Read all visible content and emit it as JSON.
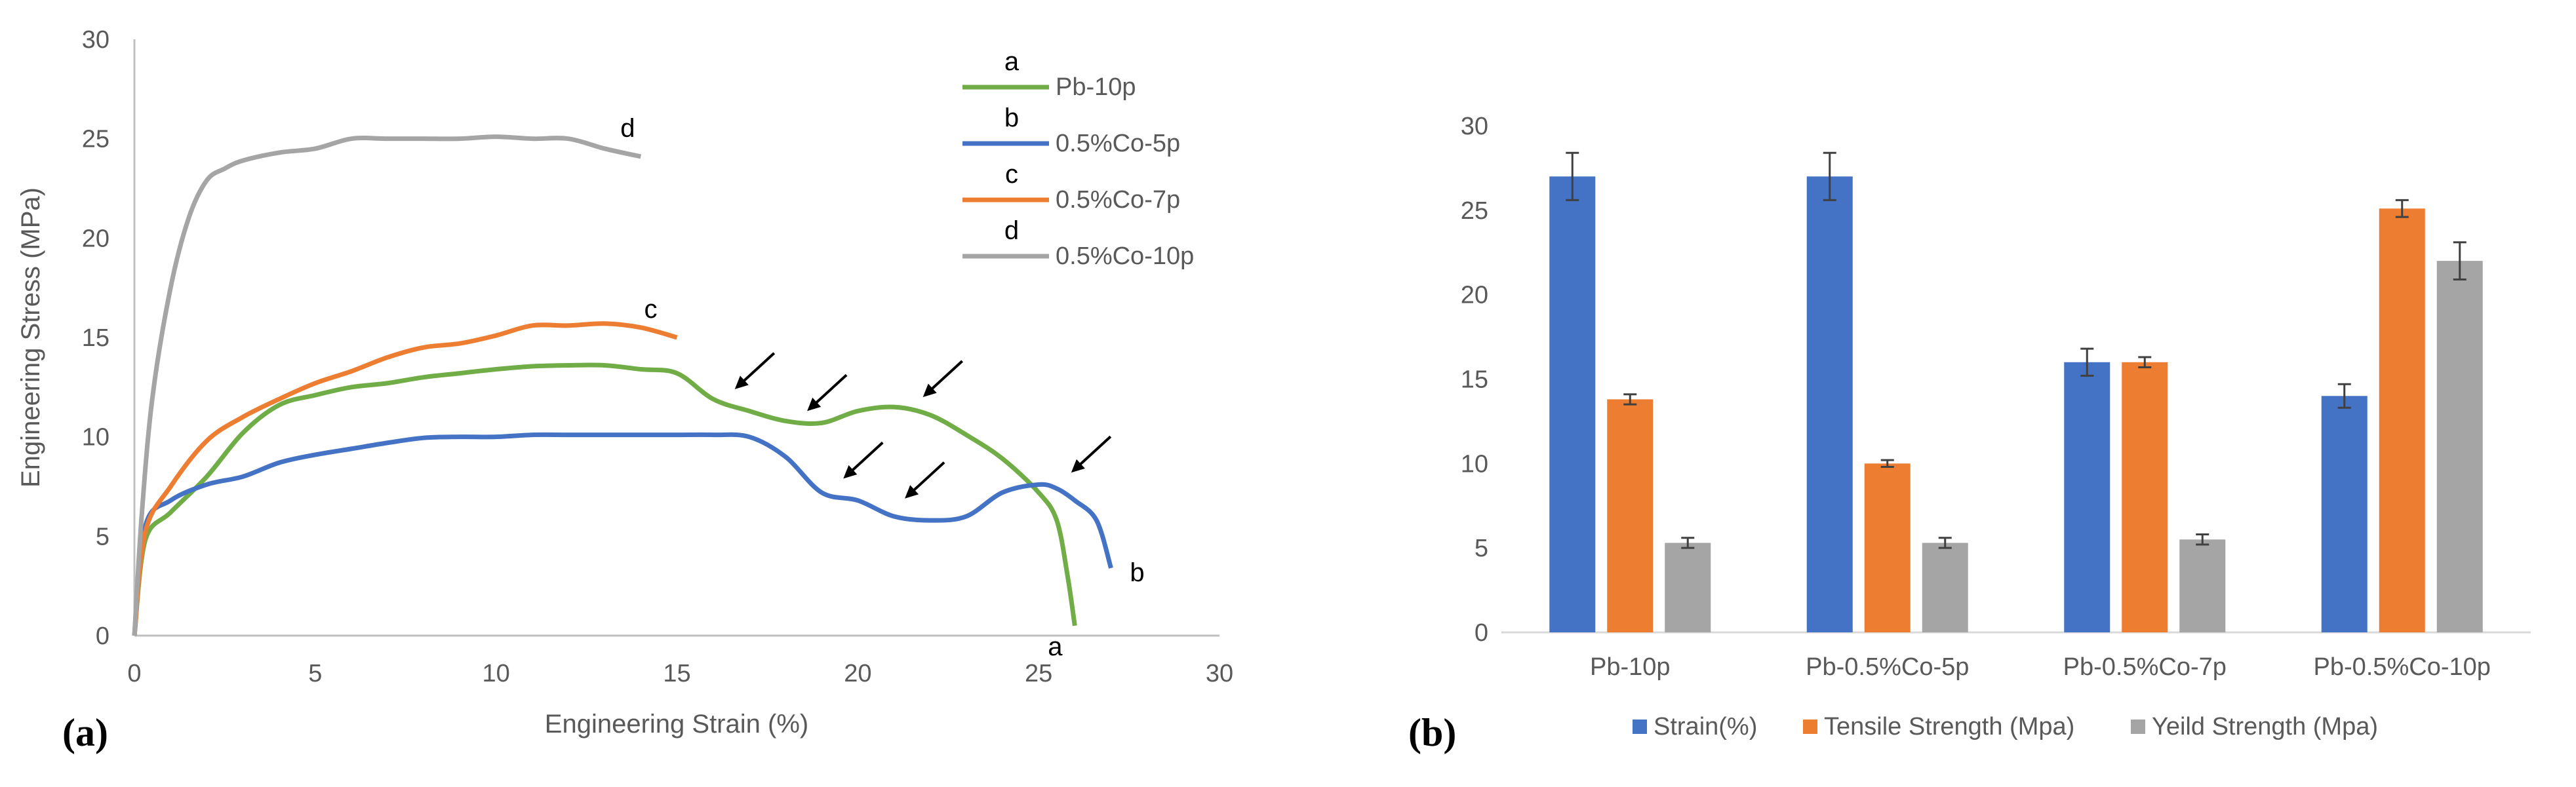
{
  "chart_data": [
    {
      "type": "line",
      "panel_label": "(a)",
      "xlabel": "Engineering Strain (%)",
      "ylabel": "Engineering Stress (MPa)",
      "xlim": [
        0,
        30
      ],
      "ylim": [
        0,
        30
      ],
      "xticks": [
        "0",
        "5",
        "10",
        "15",
        "20",
        "25",
        "30"
      ],
      "yticks": [
        "0",
        "5",
        "10",
        "15",
        "20",
        "25",
        "30"
      ],
      "legend_position": "top-right",
      "series": [
        {
          "name": "Pb-10p",
          "letter": "a",
          "color": "#70AD47",
          "x": [
            0,
            0.3,
            1,
            2,
            3,
            4,
            5,
            6,
            7,
            8,
            9,
            10,
            11,
            12,
            13,
            14,
            15,
            16,
            17,
            18,
            19,
            20,
            21,
            22,
            23,
            24,
            25,
            25.5,
            25.8,
            26
          ],
          "y": [
            0,
            4.8,
            6.2,
            8.0,
            10.2,
            11.6,
            12.1,
            12.5,
            12.7,
            13.0,
            13.2,
            13.4,
            13.55,
            13.6,
            13.6,
            13.4,
            13.2,
            11.9,
            11.3,
            10.8,
            10.7,
            11.3,
            11.5,
            11.1,
            10.1,
            8.9,
            7.2,
            5.8,
            3.0,
            0.5
          ]
        },
        {
          "name": "0.5%Co-5p",
          "letter": "b",
          "color": "#4472C4",
          "x": [
            0,
            0.3,
            1,
            2,
            3,
            4,
            5,
            6,
            7,
            8,
            9,
            10,
            11,
            12,
            13,
            14,
            15,
            16,
            17,
            18,
            19,
            20,
            21,
            22,
            23,
            24,
            25,
            25.5,
            26,
            26.6,
            27
          ],
          "y": [
            0,
            5.5,
            6.8,
            7.6,
            8.0,
            8.7,
            9.1,
            9.4,
            9.7,
            9.95,
            10.0,
            10.0,
            10.1,
            10.1,
            10.1,
            10.1,
            10.1,
            10.1,
            10.0,
            9.0,
            7.2,
            6.8,
            6.0,
            5.8,
            6.0,
            7.2,
            7.6,
            7.4,
            6.8,
            5.8,
            3.4
          ]
        },
        {
          "name": "0.5%Co-7p",
          "letter": "c",
          "color": "#ED7D31",
          "x": [
            0,
            0.3,
            1,
            2,
            3,
            4,
            5,
            6,
            7,
            8,
            9,
            10,
            11,
            12,
            13,
            14,
            15
          ],
          "y": [
            0,
            5.2,
            7.5,
            9.8,
            11.0,
            11.9,
            12.7,
            13.3,
            14.0,
            14.5,
            14.7,
            15.1,
            15.6,
            15.6,
            15.7,
            15.5,
            15.0
          ]
        },
        {
          "name": "0.5%Co-10p",
          "letter": "d",
          "color": "#A5A5A5",
          "x": [
            0,
            0.2,
            0.5,
            1,
            1.5,
            2,
            2.5,
            3,
            4,
            5,
            6,
            7,
            8,
            9,
            10,
            11,
            12,
            13,
            14
          ],
          "y": [
            0,
            6.0,
            12.0,
            17.5,
            21.0,
            22.9,
            23.5,
            23.9,
            24.3,
            24.5,
            25.0,
            25.0,
            25.0,
            25.0,
            25.1,
            25.0,
            25.0,
            24.5,
            24.1
          ]
        }
      ],
      "annotations": [
        {
          "type": "arrow",
          "x": 16.6,
          "y": 12.4
        },
        {
          "type": "arrow",
          "x": 18.6,
          "y": 11.3
        },
        {
          "type": "arrow",
          "x": 21.8,
          "y": 12.0
        },
        {
          "type": "arrow",
          "x": 19.6,
          "y": 7.9
        },
        {
          "type": "arrow",
          "x": 21.3,
          "y": 6.9
        },
        {
          "type": "arrow",
          "x": 25.9,
          "y": 8.2
        }
      ]
    },
    {
      "type": "bar",
      "panel_label": "(b)",
      "categories": [
        "Pb-10p",
        "Pb-0.5%Co-5p",
        "Pb-0.5%Co-7p",
        "Pb-0.5%Co-10p"
      ],
      "ylim": [
        0,
        30
      ],
      "yticks": [
        "0",
        "5",
        "10",
        "15",
        "20",
        "25",
        "30"
      ],
      "legend_position": "bottom",
      "series": [
        {
          "name": "Strain(%)",
          "color": "#4472C4",
          "values": [
            27,
            27,
            16,
            14
          ],
          "errors": [
            1.4,
            1.4,
            0.8,
            0.7
          ]
        },
        {
          "name": "Tensile Strength (Mpa)",
          "color": "#ED7D31",
          "values": [
            13.8,
            10,
            16,
            25.1
          ],
          "errors": [
            0.3,
            0.2,
            0.3,
            0.5
          ]
        },
        {
          "name": "Yeild Strength (Mpa)",
          "color": "#A5A5A5",
          "values": [
            5.3,
            5.3,
            5.5,
            22
          ],
          "errors": [
            0.3,
            0.3,
            0.3,
            1.1
          ]
        }
      ]
    }
  ]
}
